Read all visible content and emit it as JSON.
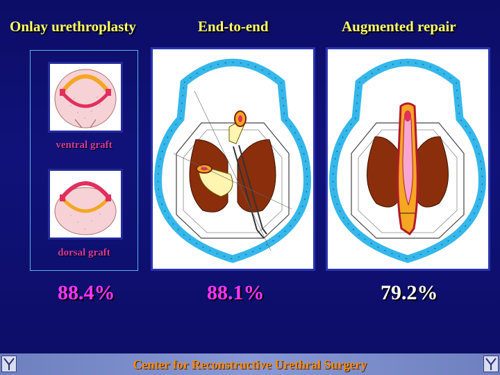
{
  "headings": {
    "onlay": "Onlay urethroplasty",
    "end_to_end": "End-to-end",
    "augmented": "Augmented repair"
  },
  "onlay_panel": {
    "ventral_label": "ventral graft",
    "dorsal_label": "dorsal graft"
  },
  "percentages": {
    "onlay": "88.4%",
    "end_to_end": "88.1%",
    "augmented": "79.2%"
  },
  "footer": {
    "title": "Center for Reconstructive Urethral Surgery"
  },
  "colors": {
    "background": "#0c0d66",
    "heading": "#ffff66",
    "graft_label": "#d23aa0",
    "percent_highlight": "#ff33ff",
    "percent_plain": "#ffffff",
    "footer_text": "#ff8a00",
    "corpus_spongiosum_ring": "#35b7ea",
    "corpora_cavernosa": "#8b2e0c",
    "urethra_graft": "#f5a623",
    "mucosa_pink": "#f7a7cf"
  }
}
